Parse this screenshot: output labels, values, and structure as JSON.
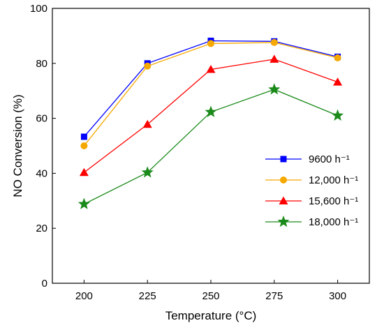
{
  "chart_data": {
    "type": "line",
    "title": "",
    "xlabel": "Temperature (°C)",
    "ylabel": "NO Conversion (%)",
    "x": [
      200,
      225,
      250,
      275,
      300
    ],
    "xticks": [
      "200",
      "225",
      "250",
      "275",
      "300"
    ],
    "yticks": [
      "0",
      "20",
      "40",
      "60",
      "80",
      "100"
    ],
    "xlim": [
      187.5,
      312.5
    ],
    "ylim": [
      0,
      100
    ],
    "grid": false,
    "legend_position": "right",
    "series": [
      {
        "name": "9600 h⁻¹",
        "color": "#0000ff",
        "marker": "square",
        "values": [
          53.3,
          80.0,
          88.2,
          88.0,
          82.4
        ]
      },
      {
        "name": "12,000 h⁻¹",
        "color": "#f5a800",
        "marker": "circle",
        "values": [
          50.0,
          79.0,
          87.2,
          87.6,
          82.0
        ]
      },
      {
        "name": "15,600 h⁻¹",
        "color": "#ff0000",
        "marker": "triangle",
        "values": [
          40.3,
          57.8,
          77.8,
          81.5,
          73.2
        ]
      },
      {
        "name": "18,000 h⁻¹",
        "color": "#1a8a1a",
        "marker": "star",
        "values": [
          28.8,
          40.3,
          62.3,
          70.5,
          61.0
        ]
      }
    ]
  }
}
